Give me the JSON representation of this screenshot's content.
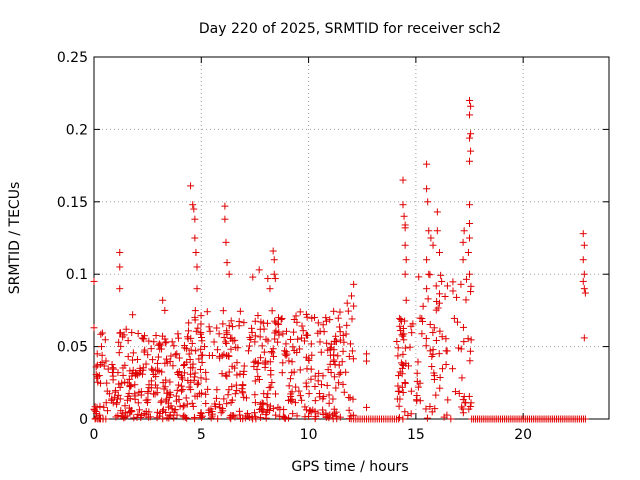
{
  "chart_data": {
    "type": "scatter",
    "title": "Day 220 of 2025, SRMTID for receiver sch2",
    "xlabel": "GPS time / hours",
    "ylabel": "SRMTID / TECUs",
    "xlim": [
      0,
      24
    ],
    "ylim": [
      0,
      0.25
    ],
    "grid": true,
    "marker": "+",
    "xticks": [
      0,
      5,
      10,
      15,
      20
    ],
    "yticks": [
      0,
      0.05,
      0.1,
      0.15,
      0.2,
      0.25
    ],
    "ytick_labels": [
      "0",
      "0.05",
      "0.1",
      "0.15",
      "0.2",
      "0.25"
    ],
    "series": [
      {
        "name": "sch2",
        "color": "#e00000",
        "explicit_points": [
          [
            0.0,
            0.095
          ],
          [
            0.0,
            0.063
          ],
          [
            0.15,
            0.045
          ],
          [
            0.25,
            0.03
          ],
          [
            0.35,
            0.05
          ],
          [
            1.2,
            0.115
          ],
          [
            1.2,
            0.105
          ],
          [
            1.2,
            0.09
          ],
          [
            1.5,
            0.062
          ],
          [
            1.8,
            0.072
          ],
          [
            3.2,
            0.082
          ],
          [
            3.3,
            0.075
          ],
          [
            4.5,
            0.161
          ],
          [
            4.6,
            0.148
          ],
          [
            4.65,
            0.145
          ],
          [
            4.7,
            0.138
          ],
          [
            4.7,
            0.125
          ],
          [
            4.75,
            0.115
          ],
          [
            4.8,
            0.105
          ],
          [
            4.8,
            0.09
          ],
          [
            6.1,
            0.147
          ],
          [
            6.1,
            0.138
          ],
          [
            6.15,
            0.122
          ],
          [
            6.2,
            0.108
          ],
          [
            6.3,
            0.1
          ],
          [
            7.4,
            0.098
          ],
          [
            7.7,
            0.103
          ],
          [
            8.1,
            0.097
          ],
          [
            8.2,
            0.09
          ],
          [
            8.35,
            0.116
          ],
          [
            8.4,
            0.11
          ],
          [
            8.4,
            0.1
          ],
          [
            8.45,
            0.097
          ],
          [
            8.6,
            0.07
          ],
          [
            9.3,
            0.06
          ],
          [
            10.8,
            0.07
          ],
          [
            11.8,
            0.08
          ],
          [
            12.0,
            0.085
          ],
          [
            12.1,
            0.093
          ],
          [
            12.1,
            0.078
          ],
          [
            12.7,
            0.045
          ],
          [
            12.7,
            0.04
          ],
          [
            12.7,
            0.008
          ],
          [
            14.4,
            0.165
          ],
          [
            14.4,
            0.148
          ],
          [
            14.45,
            0.14
          ],
          [
            14.5,
            0.134
          ],
          [
            14.5,
            0.132
          ],
          [
            14.5,
            0.12
          ],
          [
            14.55,
            0.11
          ],
          [
            14.5,
            0.1
          ],
          [
            14.55,
            0.082
          ],
          [
            15.5,
            0.176
          ],
          [
            15.5,
            0.159
          ],
          [
            15.55,
            0.15
          ],
          [
            15.6,
            0.13
          ],
          [
            15.7,
            0.125
          ],
          [
            15.8,
            0.12
          ],
          [
            15.5,
            0.11
          ],
          [
            15.6,
            0.1
          ],
          [
            15.5,
            0.09
          ],
          [
            16.0,
            0.143
          ],
          [
            16.0,
            0.13
          ],
          [
            16.1,
            0.115
          ],
          [
            16.2,
            0.095
          ],
          [
            16.1,
            0.08
          ],
          [
            17.1,
            0.093
          ],
          [
            17.2,
            0.11
          ],
          [
            17.2,
            0.122
          ],
          [
            17.25,
            0.13
          ],
          [
            17.5,
            0.22
          ],
          [
            17.55,
            0.216
          ],
          [
            17.5,
            0.21
          ],
          [
            17.55,
            0.197
          ],
          [
            17.5,
            0.194
          ],
          [
            17.55,
            0.185
          ],
          [
            17.5,
            0.178
          ],
          [
            17.5,
            0.148
          ],
          [
            17.5,
            0.135
          ],
          [
            17.5,
            0.125
          ],
          [
            17.45,
            0.115
          ],
          [
            17.5,
            0.1
          ],
          [
            17.55,
            0.088
          ],
          [
            22.8,
            0.128
          ],
          [
            22.85,
            0.12
          ],
          [
            22.8,
            0.11
          ],
          [
            22.85,
            0.1
          ],
          [
            22.8,
            0.095
          ],
          [
            22.85,
            0.09
          ],
          [
            22.9,
            0.087
          ],
          [
            22.85,
            0.056
          ]
        ],
        "dense_clusters": [
          {
            "x_range": [
              0.0,
              4.4
            ],
            "y_range": [
              0.0,
              0.06
            ],
            "count": 260,
            "seed": 11
          },
          {
            "x_range": [
              4.4,
              12.1
            ],
            "y_range": [
              0.0,
              0.075
            ],
            "count": 420,
            "seed": 23
          },
          {
            "x_range": [
              14.1,
              15.0
            ],
            "y_range": [
              0.0,
              0.07
            ],
            "count": 45,
            "seed": 37
          },
          {
            "x_range": [
              15.0,
              17.6
            ],
            "y_range": [
              0.0,
              0.1
            ],
            "count": 90,
            "seed": 41
          }
        ],
        "zero_runs": [
          {
            "x_range": [
              0.05,
              0.55
            ],
            "count": 5
          },
          {
            "x_range": [
              12.1,
              14.2
            ],
            "count": 22
          },
          {
            "x_range": [
              17.6,
              22.9
            ],
            "count": 60
          }
        ]
      }
    ]
  }
}
